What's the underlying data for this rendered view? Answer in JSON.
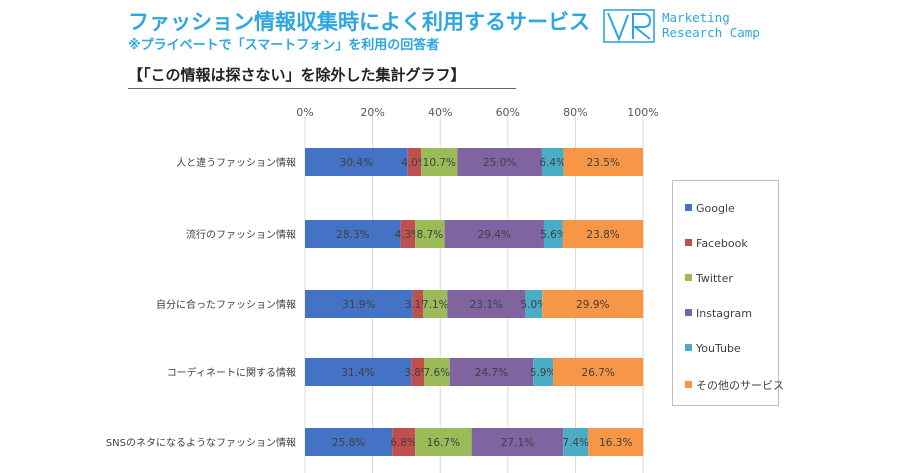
{
  "header": {
    "title": "ファッション情報収集時によく利用するサービス",
    "subtitle": "※プライベートで「スマートフォン」を利用の回答者",
    "brand_line1": "Marketing",
    "brand_line2": "Research Camp",
    "brand_color": "#2ea7e0"
  },
  "section_title": "【「この情報は探さない」を除外した集計グラフ】",
  "chart_data": {
    "type": "bar",
    "orientation": "horizontal",
    "stacked": "percent",
    "categories": [
      "人と違うファッション情報",
      "流行のファッション情報",
      "自分に合ったファッション情報",
      "コーディネートに関する情報",
      "SNSのネタになるようなファッション情報"
    ],
    "series": [
      {
        "name": "Google",
        "color": "#4472c4",
        "values": [
          30.4,
          28.3,
          31.9,
          31.4,
          25.8
        ],
        "labels": [
          "30.4%",
          "28.3%",
          "31.9%",
          "31.4%",
          "25.8%"
        ]
      },
      {
        "name": "Facebook",
        "color": "#c0504d",
        "values": [
          4.0,
          4.3,
          3.1,
          3.8,
          6.8
        ],
        "labels": [
          "4.0%",
          "4.3%",
          "3.1%",
          "3.8%",
          "6.8%"
        ]
      },
      {
        "name": "Twitter",
        "color": "#9bbb59",
        "values": [
          10.7,
          8.7,
          7.1,
          7.6,
          16.7
        ],
        "labels": [
          "10.7%",
          "8.7%",
          "7.1%",
          "7.6%",
          "16.7%"
        ]
      },
      {
        "name": "Instagram",
        "color": "#8064a2",
        "values": [
          25.0,
          29.4,
          23.1,
          24.7,
          27.1
        ],
        "labels": [
          "25.0%",
          "29.4%",
          "23.1%",
          "24.7%",
          "27.1%"
        ]
      },
      {
        "name": "YouTube",
        "color": "#4bacc6",
        "values": [
          6.4,
          5.6,
          5.0,
          5.9,
          7.4
        ],
        "labels": [
          "6.4%",
          "5.6%",
          "5.0%",
          "5.9%",
          "7.4%"
        ]
      },
      {
        "name": "その他のサービス",
        "color": "#f79646",
        "values": [
          23.5,
          23.8,
          29.9,
          26.7,
          16.3
        ],
        "labels": [
          "23.5%",
          "23.8%",
          "29.9%",
          "26.7%",
          "16.3%"
        ]
      }
    ],
    "x_ticks": [
      "0%",
      "20%",
      "40%",
      "60%",
      "80%",
      "100%"
    ],
    "xlim": [
      0,
      100
    ],
    "grid": true,
    "legend_position": "right"
  }
}
